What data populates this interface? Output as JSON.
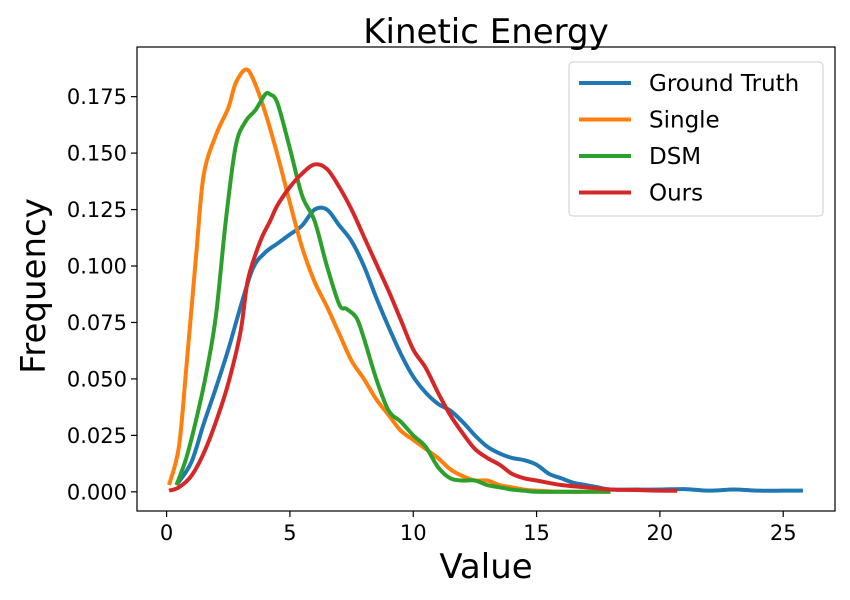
{
  "chart_data": {
    "type": "line",
    "title": "Kinetic Energy",
    "xlabel": "Value",
    "ylabel": "Frequency",
    "xlim": [
      -1.2,
      27.1
    ],
    "ylim": [
      -0.0085,
      0.197
    ],
    "xticks": [
      0,
      5,
      10,
      15,
      20,
      25
    ],
    "xtick_labels": [
      "0",
      "5",
      "10",
      "15",
      "20",
      "25"
    ],
    "yticks": [
      0.0,
      0.025,
      0.05,
      0.075,
      0.1,
      0.125,
      0.15,
      0.175
    ],
    "ytick_labels": [
      "0.000",
      "0.025",
      "0.050",
      "0.075",
      "0.100",
      "0.125",
      "0.150",
      "0.175"
    ],
    "grid": false,
    "legend_position": "top-right",
    "series": [
      {
        "name": "Ground Truth",
        "color": "#1f77b4",
        "x": [
          0.4,
          1.0,
          1.5,
          2.0,
          2.5,
          3.0,
          3.5,
          4.0,
          4.5,
          5.0,
          5.5,
          6.0,
          6.5,
          7.0,
          7.5,
          8.0,
          8.5,
          9.0,
          9.5,
          10.0,
          10.5,
          11.0,
          11.5,
          12.0,
          12.5,
          13.0,
          13.5,
          14.0,
          14.5,
          15.0,
          15.5,
          16.0,
          16.5,
          17.0,
          17.5,
          18.0,
          19.0,
          20.0,
          21.0,
          22.0,
          23.0,
          24.0,
          25.0,
          25.8
        ],
        "values": [
          0.003,
          0.013,
          0.03,
          0.046,
          0.063,
          0.082,
          0.099,
          0.106,
          0.11,
          0.114,
          0.118,
          0.125,
          0.125,
          0.118,
          0.111,
          0.1,
          0.086,
          0.073,
          0.061,
          0.051,
          0.044,
          0.039,
          0.036,
          0.031,
          0.025,
          0.02,
          0.017,
          0.015,
          0.014,
          0.012,
          0.008,
          0.006,
          0.004,
          0.003,
          0.002,
          0.001,
          0.001,
          0.001,
          0.0012,
          0.0005,
          0.001,
          0.0005,
          0.0005,
          0.0005
        ]
      },
      {
        "name": "Single",
        "color": "#ff7f0e",
        "x": [
          0.1,
          0.5,
          0.8,
          1.2,
          1.5,
          2.0,
          2.5,
          2.8,
          3.2,
          3.5,
          4.0,
          4.5,
          5.0,
          5.5,
          6.0,
          6.5,
          7.0,
          7.5,
          8.0,
          8.5,
          9.0,
          9.5,
          10.0,
          10.5,
          11.0,
          11.5,
          12.0,
          12.5,
          13.0,
          13.5,
          14.0,
          14.5,
          15.0,
          16.0,
          17.0,
          18.0
        ],
        "values": [
          0.003,
          0.02,
          0.055,
          0.105,
          0.14,
          0.158,
          0.17,
          0.181,
          0.187,
          0.183,
          0.168,
          0.149,
          0.128,
          0.108,
          0.093,
          0.082,
          0.07,
          0.058,
          0.05,
          0.041,
          0.034,
          0.027,
          0.023,
          0.019,
          0.015,
          0.01,
          0.007,
          0.005,
          0.005,
          0.003,
          0.002,
          0.001,
          0.0005,
          0.0,
          0.0,
          0.0
        ]
      },
      {
        "name": "DSM",
        "color": "#2ca02c",
        "x": [
          0.4,
          0.8,
          1.2,
          1.6,
          2.0,
          2.4,
          2.8,
          3.2,
          3.6,
          4.0,
          4.2,
          4.5,
          5.0,
          5.5,
          6.0,
          6.5,
          7.0,
          7.3,
          7.7,
          8.0,
          8.5,
          9.0,
          9.5,
          10.0,
          10.5,
          11.0,
          11.5,
          12.0,
          12.5,
          13.0,
          13.5,
          14.0,
          14.5,
          15.0,
          16.0,
          17.0,
          18.0
        ],
        "values": [
          0.003,
          0.015,
          0.032,
          0.052,
          0.078,
          0.12,
          0.153,
          0.164,
          0.169,
          0.176,
          0.176,
          0.172,
          0.152,
          0.131,
          0.12,
          0.1,
          0.083,
          0.081,
          0.077,
          0.068,
          0.05,
          0.036,
          0.031,
          0.025,
          0.02,
          0.011,
          0.006,
          0.005,
          0.005,
          0.003,
          0.002,
          0.001,
          0.0005,
          0.0,
          0.0,
          0.0,
          0.0
        ]
      },
      {
        "name": "Ours",
        "color": "#d62728",
        "x": [
          0.1,
          0.5,
          1.0,
          1.5,
          2.0,
          2.5,
          3.0,
          3.3,
          3.8,
          4.2,
          4.5,
          5.0,
          5.5,
          6.0,
          6.5,
          7.0,
          7.5,
          8.0,
          8.5,
          9.0,
          9.5,
          10.0,
          10.5,
          11.0,
          11.5,
          12.0,
          12.5,
          13.0,
          13.5,
          14.0,
          14.5,
          15.0,
          16.0,
          17.0,
          18.0,
          19.0,
          20.0,
          20.7
        ],
        "values": [
          0.0005,
          0.002,
          0.007,
          0.017,
          0.031,
          0.048,
          0.071,
          0.094,
          0.111,
          0.12,
          0.127,
          0.135,
          0.141,
          0.145,
          0.143,
          0.135,
          0.125,
          0.113,
          0.101,
          0.089,
          0.076,
          0.063,
          0.055,
          0.044,
          0.034,
          0.026,
          0.019,
          0.015,
          0.012,
          0.008,
          0.006,
          0.005,
          0.003,
          0.002,
          0.001,
          0.0008,
          0.0005,
          0.0005
        ]
      }
    ]
  }
}
